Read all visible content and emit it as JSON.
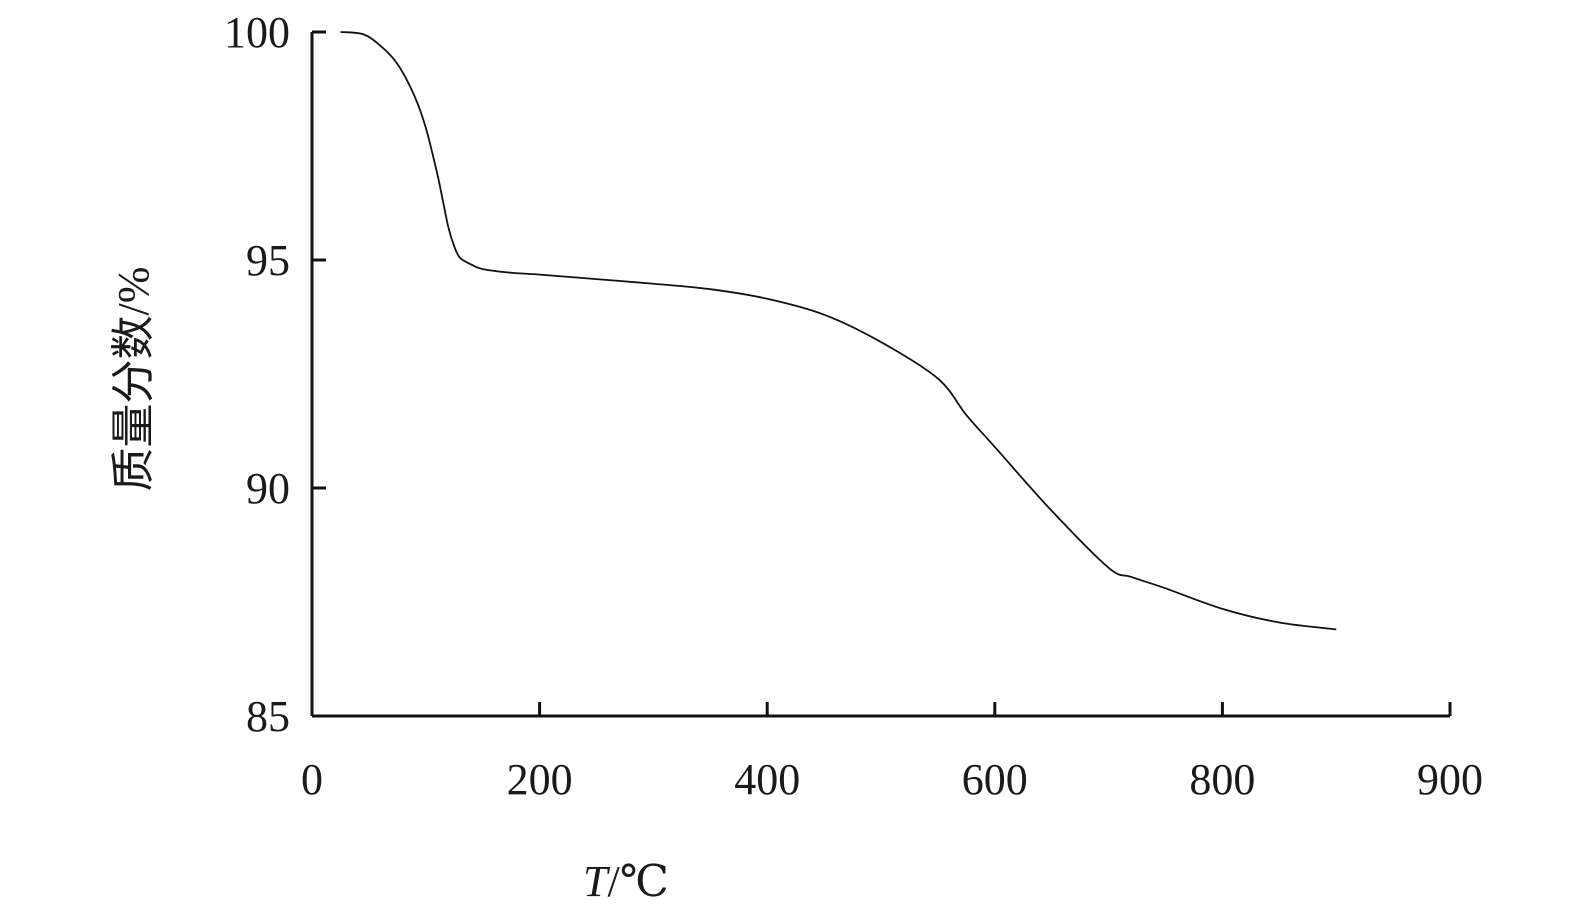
{
  "chart_data": {
    "type": "line",
    "title": "",
    "xlabel_var": "T",
    "xlabel_unit": "/℃",
    "ylabel": "质量分数/%",
    "x_ticks": [
      0,
      200,
      400,
      600,
      800,
      900
    ],
    "x_tick_labels": [
      "0",
      "200",
      "400",
      "600",
      "800",
      "900"
    ],
    "y_ticks": [
      85,
      90,
      95,
      100
    ],
    "y_tick_labels": [
      "85",
      "90",
      "95",
      "100"
    ],
    "xlim": [
      0,
      1000
    ],
    "ylim": [
      85,
      100
    ],
    "grid": false,
    "legend": "none",
    "series": [
      {
        "x": [
          25,
          45,
          60,
          75,
          90,
          100,
          110,
          115,
          120,
          125,
          130,
          140,
          150,
          175,
          200,
          250,
          300,
          350,
          400,
          450,
          500,
          550,
          575,
          600,
          650,
          700,
          720,
          750,
          800,
          850,
          900
        ],
        "y": [
          100.0,
          99.95,
          99.7,
          99.3,
          98.6,
          97.9,
          96.9,
          96.3,
          95.7,
          95.3,
          95.05,
          94.9,
          94.8,
          94.72,
          94.68,
          94.58,
          94.48,
          94.36,
          94.15,
          93.8,
          93.2,
          92.4,
          91.6,
          90.9,
          89.5,
          88.25,
          88.05,
          87.8,
          87.35,
          87.05,
          86.9
        ]
      }
    ]
  }
}
